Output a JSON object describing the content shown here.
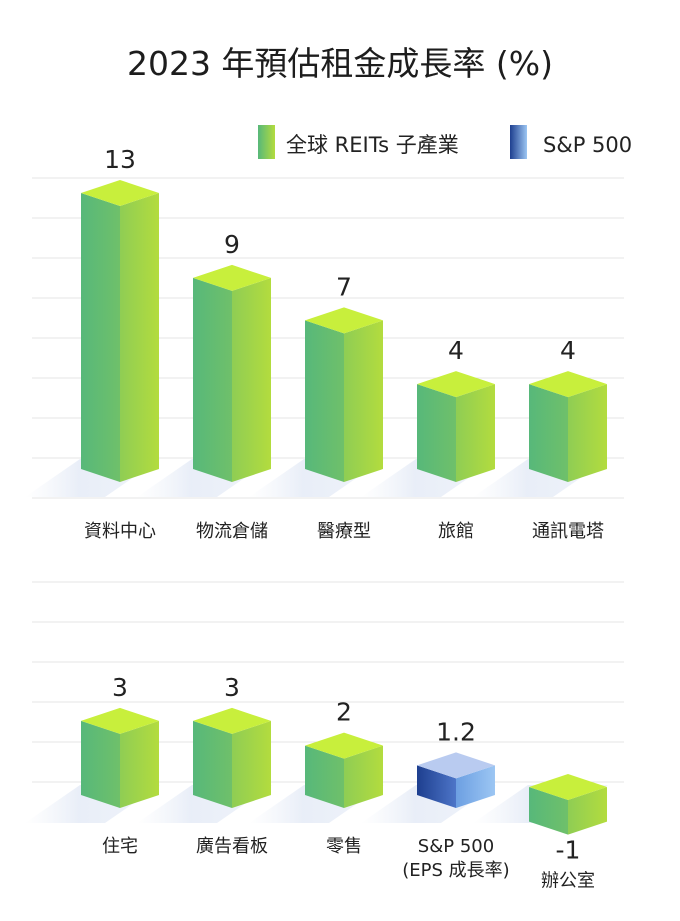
{
  "chart_data": {
    "type": "bar",
    "title": "2023 年預估租金成長率 (%)",
    "legend": [
      {
        "name": "全球 REITs 子產業",
        "color": "#8fcf4a"
      },
      {
        "name": "S&P 500",
        "color": "#2c4f9a"
      }
    ],
    "legend_position": "top-right",
    "grid": true,
    "ylim": [
      -1,
      13
    ],
    "panels": [
      {
        "categories": [
          "資料中心",
          "物流倉儲",
          "醫療型",
          "旅館",
          "通訊電塔"
        ],
        "values": [
          13,
          9,
          7,
          4,
          4
        ],
        "value_labels": [
          "13",
          "9",
          "7",
          "4",
          "4"
        ],
        "series_index": [
          0,
          0,
          0,
          0,
          0
        ]
      },
      {
        "categories": [
          "住宅",
          "廣告看板",
          "零售",
          "S&P 500\n(EPS 成長率)",
          "辦公室"
        ],
        "values": [
          3,
          3,
          2,
          1.2,
          -1
        ],
        "value_labels": [
          "3",
          "3",
          "2",
          "1.2",
          "-1"
        ],
        "series_index": [
          0,
          0,
          0,
          1,
          0
        ]
      }
    ]
  },
  "colors": {
    "green_left": "#57b87a",
    "green_right": "#a7d94a",
    "green_top": "#c8ef3c",
    "blue_left": "#1e3f8f",
    "blue_right": "#86b7ee",
    "blue_top": "#b9cbf0",
    "grid": "#e4e4e4"
  }
}
